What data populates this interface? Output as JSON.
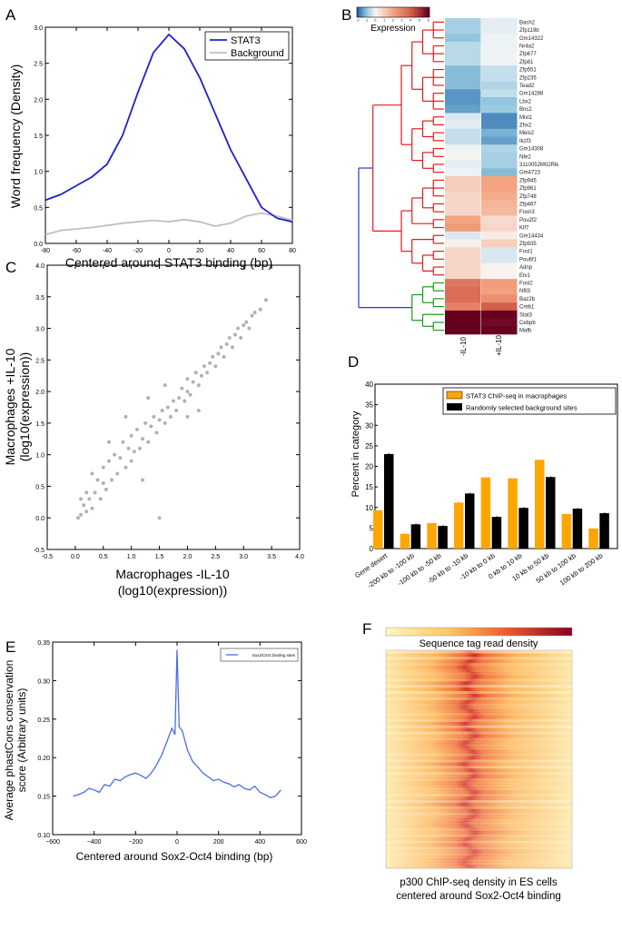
{
  "chart_data": [
    {
      "panel": "A",
      "type": "line",
      "xlabel": "Centered around STAT3 binding (bp)",
      "ylabel": "Word frequency (Density)",
      "xlim": [
        -80,
        80
      ],
      "ylim": [
        0,
        3.0
      ],
      "xticks": [
        -80,
        -60,
        -40,
        -20,
        0,
        20,
        40,
        60,
        80
      ],
      "yticks": [
        "0.0",
        "0.5",
        "1.0",
        "1.5",
        "2.0",
        "2.5",
        "3.0"
      ],
      "legend": "top-right",
      "x": [
        -80,
        -70,
        -60,
        -50,
        -40,
        -30,
        -20,
        -10,
        0,
        10,
        20,
        30,
        40,
        50,
        60,
        70,
        80
      ],
      "series": [
        {
          "name": "STAT3",
          "color": "#1f1fd0",
          "values": [
            0.6,
            0.68,
            0.8,
            0.92,
            1.1,
            1.5,
            2.1,
            2.65,
            2.9,
            2.7,
            2.3,
            1.8,
            1.3,
            0.9,
            0.5,
            0.35,
            0.3
          ]
        },
        {
          "name": "Background",
          "color": "#c0c0c0",
          "values": [
            0.12,
            0.18,
            0.2,
            0.22,
            0.25,
            0.28,
            0.3,
            0.32,
            0.3,
            0.33,
            0.3,
            0.24,
            0.28,
            0.38,
            0.42,
            0.38,
            0.32
          ]
        }
      ]
    },
    {
      "panel": "B",
      "type": "heatmap",
      "colorbar_label": "Expression",
      "colorbar_ticks": [
        -2,
        -1,
        0,
        1,
        2,
        3,
        4,
        5,
        6
      ],
      "colormap": "blue-white-red",
      "columns": [
        "-IL-10",
        "+IL-10"
      ],
      "rows": [
        "Bach2",
        "Zfp119b",
        "Gm14322",
        "Nr4a2",
        "Zfp677",
        "Zfp81",
        "Zfp551",
        "Zfp235",
        "Tead2",
        "Gm14288",
        "Lbx2",
        "Bnc2",
        "Mixl1",
        "Zhx2",
        "Meis2",
        "Ikzf3",
        "Gm14308",
        "Nfe2",
        "3110052M02Rik",
        "Gm4723",
        "Zfp945",
        "Zfp961",
        "Zfp748",
        "Zfp467",
        "Foxn3",
        "Pou2f2",
        "Klf7",
        "Gm14434",
        "Zfp935",
        "Fosl1",
        "Pou6f1",
        "Adnp",
        "Etv1",
        "Fosl2",
        "Nfil3",
        "Baz2b",
        "Creb1",
        "Stat3",
        "Cebpb",
        "Mafb"
      ],
      "values": [
        [
          -0.8,
          -0.2
        ],
        [
          -0.8,
          -0.2
        ],
        [
          -1.0,
          -0.1
        ],
        [
          -0.6,
          -0.1
        ],
        [
          -0.6,
          -0.1
        ],
        [
          -0.6,
          -0.1
        ],
        [
          -1.1,
          -0.5
        ],
        [
          -1.1,
          -0.5
        ],
        [
          -1.1,
          -0.7
        ],
        [
          -1.5,
          -0.5
        ],
        [
          -1.5,
          -1.0
        ],
        [
          -1.4,
          -0.9
        ],
        [
          -0.3,
          -1.6
        ],
        [
          -0.2,
          -1.6
        ],
        [
          -0.5,
          -1.2
        ],
        [
          -0.5,
          -1.4
        ],
        [
          -0.1,
          -0.7
        ],
        [
          0.1,
          -0.8
        ],
        [
          -0.2,
          -0.8
        ],
        [
          -0.1,
          -1.1
        ],
        [
          1.0,
          2.0
        ],
        [
          1.0,
          2.0
        ],
        [
          0.8,
          1.8
        ],
        [
          0.8,
          1.6
        ],
        [
          0.8,
          1.5
        ],
        [
          2.0,
          0.7
        ],
        [
          2.3,
          0.8
        ],
        [
          -0.3,
          0.3
        ],
        [
          0.2,
          1.0
        ],
        [
          0.8,
          -0.3
        ],
        [
          0.8,
          -0.3
        ],
        [
          0.8,
          0.1
        ],
        [
          0.8,
          0.1
        ],
        [
          3.3,
          2.2
        ],
        [
          3.6,
          2.1
        ],
        [
          3.6,
          2.6
        ],
        [
          3.0,
          4.0
        ],
        [
          6,
          6
        ],
        [
          6,
          5.8
        ],
        [
          6,
          6
        ]
      ],
      "dendrogram_colors": {
        "root": "#1f3fd0",
        "cluster1": "#e41a1c",
        "cluster2": "#1a9a1a"
      }
    },
    {
      "panel": "C",
      "type": "scatter",
      "xlabel": "Macrophages -IL-10",
      "xlabel2": "(log10(expression))",
      "ylabel": "Macrophages +IL-10",
      "ylabel2": "(log10(expression))",
      "xlim": [
        -0.5,
        4.0
      ],
      "ylim": [
        -0.5,
        4.0
      ],
      "xticks": [
        "-0.5",
        "0.0",
        "0.5",
        "1.0",
        "1.5",
        "2.0",
        "2.5",
        "3.0",
        "3.5",
        "4.0"
      ],
      "yticks": [
        "-0.5",
        "0.0",
        "0.5",
        "1.0",
        "1.5",
        "2.0",
        "2.5",
        "3.0",
        "3.5",
        "4.0"
      ],
      "point_color": "#555555",
      "points": [
        [
          0.05,
          0.0
        ],
        [
          0.1,
          0.05
        ],
        [
          0.15,
          0.2
        ],
        [
          0.2,
          0.1
        ],
        [
          0.25,
          0.3
        ],
        [
          0.3,
          0.15
        ],
        [
          0.35,
          0.4
        ],
        [
          0.4,
          0.6
        ],
        [
          0.45,
          0.3
        ],
        [
          0.5,
          0.55
        ],
        [
          0.5,
          0.8
        ],
        [
          0.55,
          0.45
        ],
        [
          0.6,
          0.9
        ],
        [
          0.65,
          0.6
        ],
        [
          0.7,
          1.0
        ],
        [
          0.75,
          0.7
        ],
        [
          0.8,
          0.95
        ],
        [
          0.85,
          1.2
        ],
        [
          0.9,
          0.8
        ],
        [
          0.95,
          1.1
        ],
        [
          1.0,
          1.3
        ],
        [
          1.0,
          0.9
        ],
        [
          1.05,
          1.05
        ],
        [
          1.1,
          1.4
        ],
        [
          1.15,
          1.1
        ],
        [
          1.2,
          1.25
        ],
        [
          1.25,
          1.5
        ],
        [
          1.3,
          1.2
        ],
        [
          1.35,
          1.45
        ],
        [
          1.4,
          1.6
        ],
        [
          1.45,
          1.35
        ],
        [
          1.5,
          1.55
        ],
        [
          1.5,
          0.0
        ],
        [
          1.55,
          1.7
        ],
        [
          1.6,
          1.5
        ],
        [
          1.65,
          1.75
        ],
        [
          1.7,
          1.6
        ],
        [
          1.75,
          1.85
        ],
        [
          1.8,
          1.7
        ],
        [
          1.85,
          1.9
        ],
        [
          1.9,
          2.05
        ],
        [
          1.95,
          1.85
        ],
        [
          2.0,
          2.0
        ],
        [
          2.0,
          2.2
        ],
        [
          2.05,
          1.95
        ],
        [
          2.1,
          2.15
        ],
        [
          2.15,
          2.3
        ],
        [
          2.2,
          2.1
        ],
        [
          2.25,
          2.25
        ],
        [
          2.3,
          2.4
        ],
        [
          2.35,
          2.3
        ],
        [
          2.4,
          2.45
        ],
        [
          2.45,
          2.55
        ],
        [
          2.5,
          2.4
        ],
        [
          2.55,
          2.6
        ],
        [
          2.6,
          2.7
        ],
        [
          2.65,
          2.55
        ],
        [
          2.7,
          2.75
        ],
        [
          2.75,
          2.85
        ],
        [
          2.8,
          2.7
        ],
        [
          2.85,
          2.9
        ],
        [
          2.9,
          3.0
        ],
        [
          2.95,
          2.85
        ],
        [
          3.0,
          3.05
        ],
        [
          3.05,
          3.1
        ],
        [
          3.1,
          3.0
        ],
        [
          3.15,
          3.2
        ],
        [
          3.2,
          3.25
        ],
        [
          3.3,
          3.3
        ],
        [
          3.4,
          3.45
        ],
        [
          0.3,
          0.7
        ],
        [
          0.6,
          1.2
        ],
        [
          1.2,
          0.6
        ],
        [
          0.9,
          1.6
        ],
        [
          1.6,
          2.1
        ],
        [
          2.2,
          1.7
        ],
        [
          1.3,
          1.9
        ],
        [
          2.0,
          1.6
        ],
        [
          0.1,
          0.3
        ],
        [
          0.2,
          0.4
        ]
      ]
    },
    {
      "panel": "D",
      "type": "bar",
      "ylabel": "Percent in category",
      "ylim": [
        0,
        40
      ],
      "yticks": [
        0,
        5,
        10,
        15,
        20,
        25,
        30,
        35,
        40
      ],
      "legend": "top-right",
      "categories": [
        "Gene desert",
        "-200 kb to -100 kb",
        "-100 kb to -50 kb",
        "-50 kb to -10 kb",
        "-10 kb to 0 kb",
        "0 kb to 10 kb",
        "10 kb to 50 kb",
        "50 kb to 100 kb",
        "100 kb to 200 kb"
      ],
      "series": [
        {
          "name": "STAT3 ChIP-seq in macrophages",
          "color": "#ffa500",
          "values": [
            9.3,
            3.6,
            6.2,
            11.2,
            17.3,
            17.1,
            21.6,
            8.4,
            4.9
          ]
        },
        {
          "name": "Randomly selected background sites",
          "color": "#000000",
          "values": [
            23.0,
            5.9,
            5.5,
            13.4,
            7.7,
            9.9,
            17.4,
            9.7,
            8.6
          ]
        }
      ]
    },
    {
      "panel": "E",
      "type": "line",
      "xlabel": "Centered around Sox2-Oct4 binding (bp)",
      "ylabel": "Average phastCons conservation",
      "ylabel2": "score (Arbitrary units)",
      "xlim": [
        -600,
        600
      ],
      "ylim": [
        0.1,
        0.35
      ],
      "xticks": [
        "−600",
        "−400",
        "−200",
        "0",
        "200",
        "400",
        "600"
      ],
      "yticks": [
        "0.10",
        "0.15",
        "0.20",
        "0.25",
        "0.30",
        "0.35"
      ],
      "legend": "top-right",
      "x": [
        -500,
        -475,
        -450,
        -425,
        -400,
        -375,
        -350,
        -325,
        -300,
        -275,
        -250,
        -225,
        -200,
        -175,
        -150,
        -125,
        -100,
        -75,
        -50,
        -25,
        -10,
        0,
        10,
        25,
        50,
        75,
        100,
        125,
        150,
        175,
        200,
        225,
        250,
        275,
        300,
        325,
        350,
        375,
        400,
        425,
        450,
        475,
        500
      ],
      "series": [
        {
          "name": "Sox2/Oct4 binding sites",
          "color": "#4a6ee8",
          "values": [
            0.15,
            0.152,
            0.155,
            0.16,
            0.158,
            0.155,
            0.165,
            0.163,
            0.172,
            0.17,
            0.175,
            0.178,
            0.18,
            0.177,
            0.173,
            0.18,
            0.19,
            0.203,
            0.22,
            0.238,
            0.23,
            0.34,
            0.24,
            0.235,
            0.21,
            0.195,
            0.188,
            0.18,
            0.175,
            0.17,
            0.172,
            0.168,
            0.166,
            0.162,
            0.165,
            0.16,
            0.158,
            0.163,
            0.155,
            0.152,
            0.148,
            0.15,
            0.158
          ]
        }
      ]
    },
    {
      "panel": "F",
      "type": "heatmap",
      "colorbar_label": "Sequence tag read density",
      "colormap": "yellow-orange-red",
      "caption_line1": "p300 ChIP-seq density in ES cells",
      "caption_line2": "centered around Sox2-Oct4 binding"
    }
  ],
  "panel_labels": [
    "A",
    "B",
    "C",
    "D",
    "E",
    "F"
  ]
}
